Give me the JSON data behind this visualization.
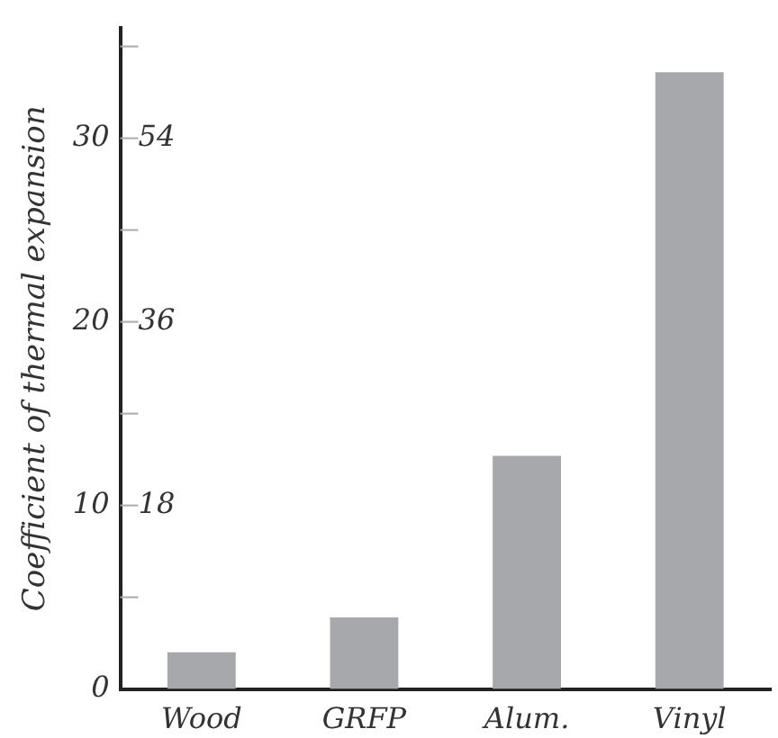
{
  "chart_data": {
    "type": "bar",
    "ylabel": "Coefficient of thermal expansion",
    "categories": [
      "Wood",
      "GRFP",
      "Alum.",
      "Vinyl"
    ],
    "values": [
      2,
      3.9,
      12.7,
      33.6
    ],
    "color": "#a7a8ab",
    "ylim": [
      0,
      36
    ],
    "yticks": [
      0,
      {
        "value": 5,
        "label": null
      },
      10,
      {
        "value": 15,
        "label": null
      },
      20,
      {
        "value": 25,
        "label": null
      },
      30,
      {
        "value": 35,
        "label": null
      }
    ],
    "y2lim": [
      0,
      64.8
    ],
    "y2ticks": [
      18,
      36,
      54
    ],
    "grid": false,
    "legend": false
  }
}
